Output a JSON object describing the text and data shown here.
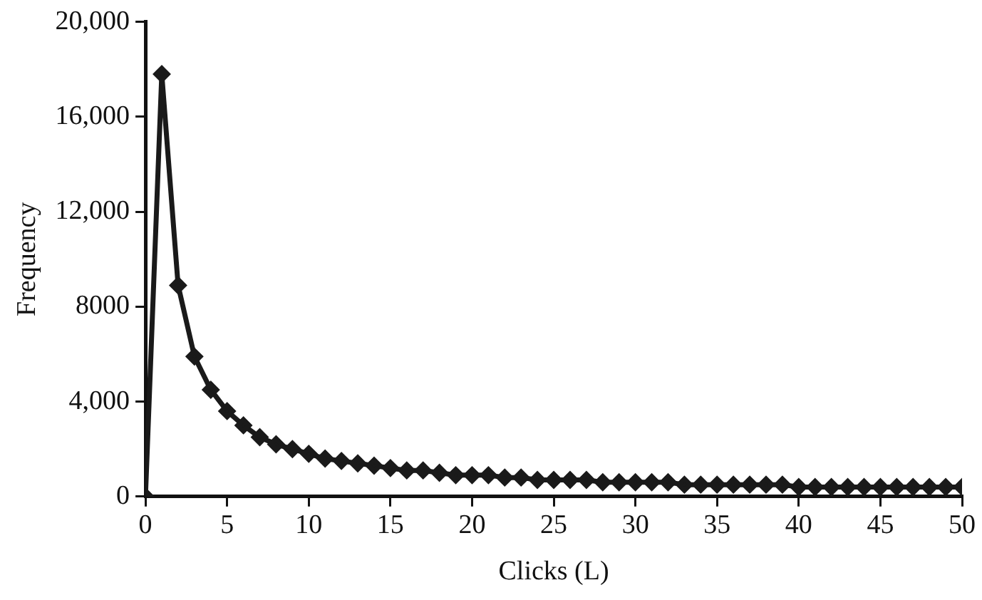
{
  "chart_data": {
    "type": "line",
    "xlabel": "Clicks (L)",
    "ylabel": "Frequency",
    "x": [
      0,
      1,
      2,
      3,
      4,
      5,
      6,
      7,
      8,
      9,
      10,
      11,
      12,
      13,
      14,
      15,
      16,
      17,
      18,
      19,
      20,
      21,
      22,
      23,
      24,
      25,
      26,
      27,
      28,
      29,
      30,
      31,
      32,
      33,
      34,
      35,
      36,
      37,
      38,
      39,
      40,
      41,
      42,
      43,
      44,
      45,
      46,
      47,
      48,
      49,
      50
    ],
    "series": [
      {
        "color": "#1a1a1a",
        "values": [
          0,
          17800,
          8900,
          5900,
          4500,
          3600,
          3000,
          2500,
          2200,
          2000,
          1800,
          1600,
          1500,
          1400,
          1300,
          1200,
          1100,
          1100,
          1000,
          900,
          900,
          900,
          800,
          800,
          700,
          700,
          700,
          700,
          600,
          600,
          600,
          600,
          600,
          500,
          500,
          500,
          500,
          500,
          500,
          500,
          400,
          400,
          400,
          400,
          400,
          400,
          400,
          400,
          400,
          400,
          400
        ]
      }
    ],
    "xlim": [
      0,
      50
    ],
    "xticks": [
      0,
      5,
      10,
      15,
      20,
      25,
      30,
      35,
      40,
      45,
      50
    ],
    "ylim": [
      0,
      20000
    ],
    "yticks": [
      0,
      {
        "value": 4000,
        "label": "4,000"
      },
      8000,
      {
        "value": 12000,
        "label": "12,000"
      },
      {
        "value": 16000,
        "label": "16,000"
      },
      {
        "value": 20000,
        "label": "20,000"
      }
    ],
    "grid": false,
    "legend": false,
    "marker": "diamond",
    "line_style": "solid"
  }
}
